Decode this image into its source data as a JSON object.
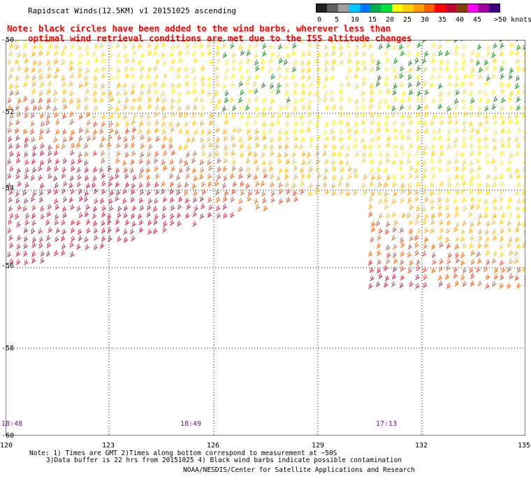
{
  "title": "Rapidscat Winds(12.5KM) v1 20151025 ascending",
  "note_line1": "Note: black circles have been added to the wind barbs, wherever less than",
  "note_line2": "optimal wind retrieval conditions are met due to the ISS altitude changes",
  "legend": {
    "labels": [
      "0",
      "5",
      "10",
      "15",
      "20",
      "25",
      "30",
      "35",
      "40",
      "45",
      ">50 knots"
    ],
    "colors": [
      "#202020",
      "#606060",
      "#a0a0a0",
      "#00c8ff",
      "#0078ff",
      "#00b050",
      "#00e040",
      "#ffff00",
      "#ffd000",
      "#ffa000",
      "#ff6000",
      "#ff0000",
      "#c00030",
      "#804000",
      "#ff00ff",
      "#a000a0",
      "#400080"
    ]
  },
  "axes": {
    "lat_labels": [
      "-50",
      "-52",
      "-54",
      "-56",
      "-58",
      "-60"
    ],
    "lon_labels": [
      "120",
      "123",
      "126",
      "129",
      "132",
      "135"
    ]
  },
  "times": [
    "18:48",
    "18:49",
    "17:13"
  ],
  "footnote_line1": "Note: 1) Times are GMT 2)Times along bottom correspond to measurement at ~50S",
  "footnote_line2": "3)Data buffer is 22 hrs from 20151025 4) Black wind barbs indicate possible contamination",
  "credit": "NOAA/NESDIS/Center for Satellite Applications and Research"
}
